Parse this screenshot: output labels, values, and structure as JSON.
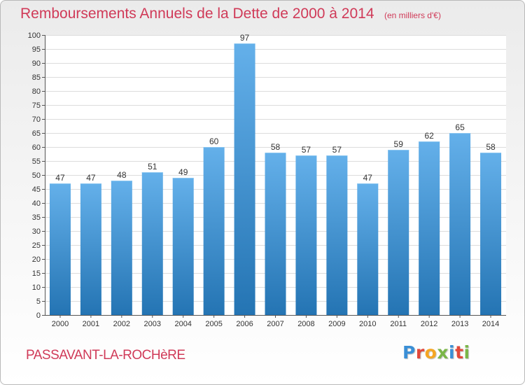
{
  "header": {
    "title": "Remboursements Annuels de la Dette de 2000 à 2014",
    "unit": "(en milliers d'€)"
  },
  "footer": {
    "city": "PASSAVANT-LA-ROCHèRE",
    "brand": "Proxiti",
    "brand_colors": [
      "#3a8fd6",
      "#e2483a",
      "#f5a623",
      "#7ab648",
      "#3a8fd6",
      "#e2483a",
      "#7ab648"
    ]
  },
  "colors": {
    "bar_light": "#64b0ea",
    "bar_dark": "#2474b3",
    "grid": "#dcdcdc",
    "axis": "#555555",
    "text": "#333333"
  },
  "chart_data": {
    "type": "bar",
    "categories": [
      "2000",
      "2001",
      "2002",
      "2003",
      "2004",
      "2005",
      "2006",
      "2007",
      "2008",
      "2009",
      "2010",
      "2011",
      "2012",
      "2013",
      "2014"
    ],
    "values": [
      47,
      47,
      48,
      51,
      49,
      60,
      97,
      58,
      57,
      57,
      47,
      59,
      62,
      65,
      58
    ],
    "data_labels": [
      "47",
      "47",
      "48",
      "51",
      "49",
      "60",
      "97",
      "58",
      "57",
      "57",
      "47",
      "59",
      "62",
      "65",
      "58"
    ],
    "yticks": [
      0,
      5,
      10,
      15,
      20,
      25,
      30,
      35,
      40,
      45,
      50,
      55,
      60,
      65,
      70,
      75,
      80,
      85,
      90,
      95,
      100
    ],
    "ylim": [
      0,
      100
    ],
    "grid": true
  }
}
